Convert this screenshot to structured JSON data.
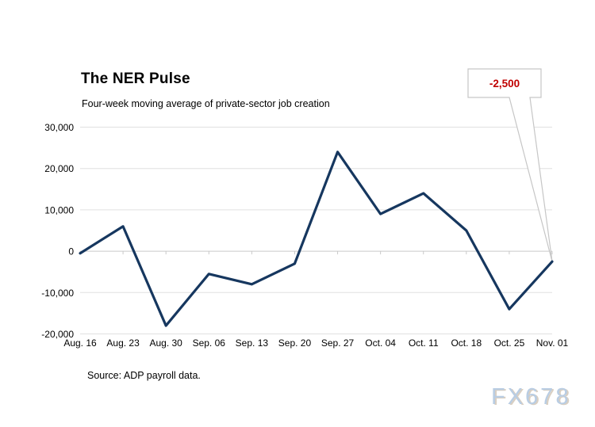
{
  "watermark": {
    "text": "FX678"
  },
  "chart_data": {
    "type": "line",
    "title": "The NER Pulse",
    "subtitle": "Four-week moving average of private-sector job creation",
    "source_note": "Source: ADP payroll data.",
    "categories": [
      "Aug. 16",
      "Aug. 23",
      "Aug. 30",
      "Sep. 06",
      "Sep. 13",
      "Sep. 20",
      "Sep. 27",
      "Oct. 04",
      "Oct. 11",
      "Oct. 18",
      "Oct. 25",
      "Nov. 01"
    ],
    "series": [
      {
        "name": "Four-week moving average of private-sector job creation",
        "values": [
          -500,
          6000,
          -18000,
          -5500,
          -8000,
          -3000,
          24000,
          9000,
          14000,
          5000,
          -14000,
          -2500
        ]
      }
    ],
    "ylim": [
      -20000,
      30000
    ],
    "ytick_values": [
      30000,
      20000,
      10000,
      0,
      -10000,
      -20000
    ],
    "ytick_labels": [
      "30,000",
      "20,000",
      "10,000",
      "0",
      "-10,000",
      "-20,000"
    ],
    "grid": "horizontal",
    "legend": "none",
    "category_axis_position": "zero-line-with-low-labels",
    "annotation": {
      "label": "-2,500",
      "category": "Nov. 01",
      "value": -2500
    },
    "colors": {
      "line": "#16375f",
      "annotation_text": "#c00000",
      "callout_border": "#c6c6c6",
      "gridline": "#e0e0e0",
      "axis_line": "#c9c9c9",
      "text": "#000000",
      "watermark": "#b9cde3"
    }
  }
}
